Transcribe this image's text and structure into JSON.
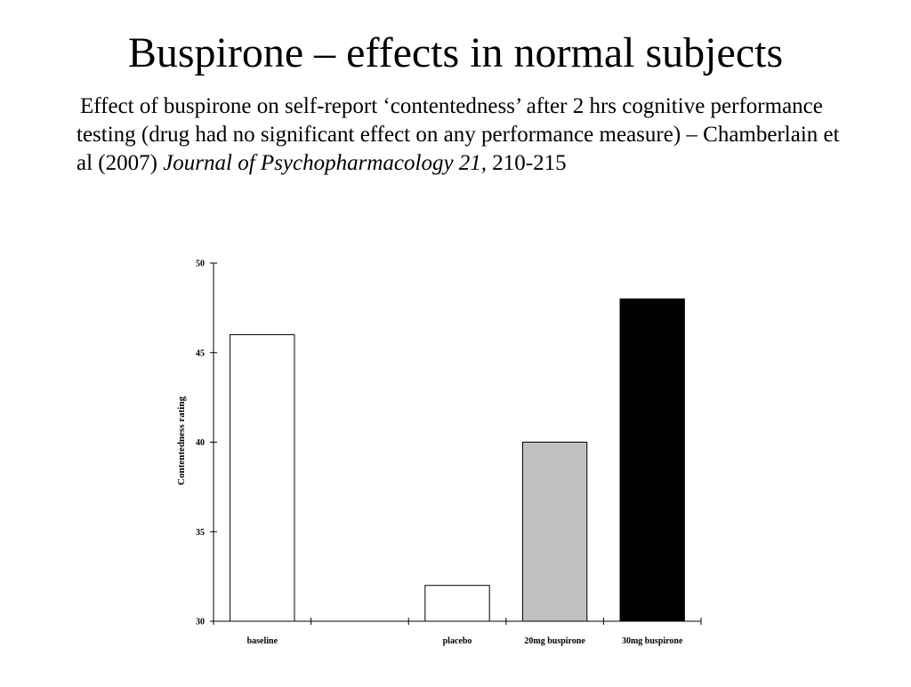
{
  "slide": {
    "title": "Buspirone – effects in normal subjects",
    "body_part1": "Effect of buspirone on self-report ‘contentedness’ after 2 hrs cognitive performance testing (drug had no significant effect on any performance measure) – Chamberlain et al (2007)  ",
    "body_italic": "Journal of Psychopharmacology 21,",
    "body_part2": " 210-215"
  },
  "chart_data": {
    "type": "bar",
    "categories": [
      "baseline",
      "",
      "placebo",
      "20mg buspirone",
      "30mg buspirone"
    ],
    "values": [
      46,
      null,
      32,
      40,
      48
    ],
    "colors": [
      "#ffffff",
      "#ffffff",
      "#ffffff",
      "#c0c0c0",
      "#000000"
    ],
    "ylabel": "Contentedness rating",
    "xlabel": "",
    "title": "",
    "ylim": [
      30,
      50
    ],
    "yticks": [
      30,
      35,
      40,
      45,
      50
    ],
    "grid": false
  }
}
